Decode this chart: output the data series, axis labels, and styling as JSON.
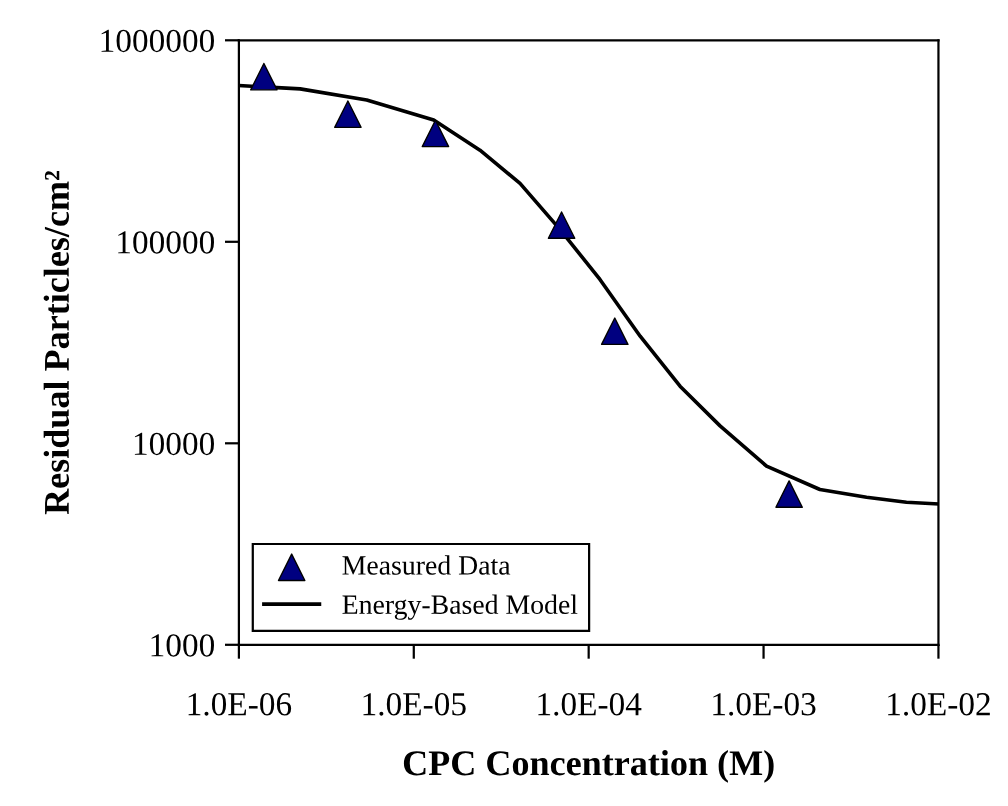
{
  "chart_data": {
    "type": "scatter",
    "xlabel": "CPC Concentration (M)",
    "ylabel": "Residual Particles/cm²",
    "log": "xy",
    "xlim": [
      1e-06,
      0.01
    ],
    "xticks": [
      {
        "value": 1e-06,
        "label": "1.0E-06"
      },
      {
        "value": 1e-05,
        "label": "1.0E-05"
      },
      {
        "value": 0.0001,
        "label": "1.0E-04"
      },
      {
        "value": 0.001,
        "label": "1.0E-03"
      },
      {
        "value": 0.01,
        "label": "1.0E-02"
      }
    ],
    "ylim": [
      1000,
      1000000
    ],
    "yticks": [
      1000,
      10000,
      100000,
      1000000
    ],
    "grid": false,
    "legend": "bottom left",
    "series": [
      {
        "name": "Measured Data",
        "marker": "triangle",
        "color": "#000080",
        "x": [
          1.39e-06,
          4.2e-06,
          1.33e-05,
          7e-05,
          0.000141,
          0.0014
        ],
        "values": [
          660000,
          430000,
          345000,
          121000,
          36000,
          5600
        ]
      },
      {
        "name": "Energy-Based Model",
        "type": "line",
        "marker": "none",
        "line_style": "solid",
        "color": "#000000",
        "x": [
          1e-06,
          2.24e-06,
          5.38e-06,
          1.3e-05,
          2.39e-05,
          4.05e-05,
          6.87e-05,
          0.000116,
          0.000197,
          0.000333,
          0.000564,
          0.00104,
          0.0021,
          0.00388,
          0.00656,
          0.01
        ],
        "values": [
          596000,
          574000,
          505000,
          402000,
          285000,
          195000,
          115000,
          65000,
          34000,
          19200,
          12200,
          7700,
          5900,
          5400,
          5100,
          5000
        ]
      }
    ]
  }
}
